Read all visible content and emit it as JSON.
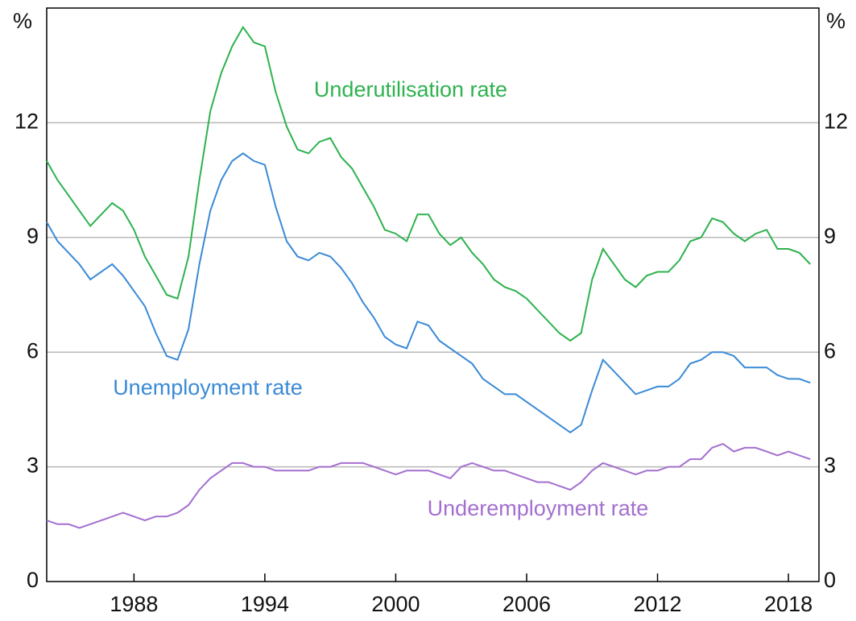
{
  "chart_data": {
    "type": "line",
    "y_unit": "%",
    "x": [
      1984,
      1984.5,
      1985,
      1985.5,
      1986,
      1986.5,
      1987,
      1987.5,
      1988,
      1988.5,
      1989,
      1989.5,
      1990,
      1990.5,
      1991,
      1991.5,
      1992,
      1992.5,
      1993,
      1993.5,
      1994,
      1994.5,
      1995,
      1995.5,
      1996,
      1996.5,
      1997,
      1997.5,
      1998,
      1998.5,
      1999,
      1999.5,
      2000,
      2000.5,
      2001,
      2001.5,
      2002,
      2002.5,
      2003,
      2003.5,
      2004,
      2004.5,
      2005,
      2005.5,
      2006,
      2006.5,
      2007,
      2007.5,
      2008,
      2008.5,
      2009,
      2009.5,
      2010,
      2010.5,
      2011,
      2011.5,
      2012,
      2012.5,
      2013,
      2013.5,
      2014,
      2014.5,
      2015,
      2015.5,
      2016,
      2016.5,
      2017,
      2017.5,
      2018,
      2018.5,
      2019
    ],
    "series": [
      {
        "name": "Underutilisation rate",
        "color": "#2eb24e",
        "values": [
          11.0,
          10.5,
          10.1,
          9.7,
          9.3,
          9.6,
          9.9,
          9.7,
          9.2,
          8.5,
          8.0,
          7.5,
          7.4,
          8.5,
          10.5,
          12.3,
          13.3,
          14.0,
          14.5,
          14.1,
          14.0,
          12.8,
          11.9,
          11.3,
          11.2,
          11.5,
          11.6,
          11.1,
          10.8,
          10.3,
          9.8,
          9.2,
          9.1,
          8.9,
          9.6,
          9.6,
          9.1,
          8.8,
          9.0,
          8.6,
          8.3,
          7.9,
          7.7,
          7.6,
          7.4,
          7.1,
          6.8,
          6.5,
          6.3,
          6.5,
          7.9,
          8.7,
          8.3,
          7.9,
          7.7,
          8.0,
          8.1,
          8.1,
          8.4,
          8.9,
          9.0,
          9.5,
          9.4,
          9.1,
          8.9,
          9.1,
          9.2,
          8.7,
          8.7,
          8.6,
          8.3
        ]
      },
      {
        "name": "Unemployment rate",
        "color": "#3a8ad6",
        "values": [
          9.4,
          8.9,
          8.6,
          8.3,
          7.9,
          8.1,
          8.3,
          8.0,
          7.6,
          7.2,
          6.5,
          5.9,
          5.8,
          6.6,
          8.3,
          9.7,
          10.5,
          11.0,
          11.2,
          11.0,
          10.9,
          9.8,
          8.9,
          8.5,
          8.4,
          8.6,
          8.5,
          8.2,
          7.8,
          7.3,
          6.9,
          6.4,
          6.2,
          6.1,
          6.8,
          6.7,
          6.3,
          6.1,
          5.9,
          5.7,
          5.3,
          5.1,
          4.9,
          4.9,
          4.7,
          4.5,
          4.3,
          4.1,
          3.9,
          4.1,
          5.0,
          5.8,
          5.5,
          5.2,
          4.9,
          5.0,
          5.1,
          5.1,
          5.3,
          5.7,
          5.8,
          6.0,
          6.0,
          5.9,
          5.6,
          5.6,
          5.6,
          5.4,
          5.3,
          5.3,
          5.2
        ]
      },
      {
        "name": "Underemployment rate",
        "color": "#a46fd0",
        "values": [
          1.6,
          1.5,
          1.5,
          1.4,
          1.5,
          1.6,
          1.7,
          1.8,
          1.7,
          1.6,
          1.7,
          1.7,
          1.8,
          2.0,
          2.4,
          2.7,
          2.9,
          3.1,
          3.1,
          3.0,
          3.0,
          2.9,
          2.9,
          2.9,
          2.9,
          3.0,
          3.0,
          3.1,
          3.1,
          3.1,
          3.0,
          2.9,
          2.8,
          2.9,
          2.9,
          2.9,
          2.8,
          2.7,
          3.0,
          3.1,
          3.0,
          2.9,
          2.9,
          2.8,
          2.7,
          2.6,
          2.6,
          2.5,
          2.4,
          2.6,
          2.9,
          3.1,
          3.0,
          2.9,
          2.8,
          2.9,
          2.9,
          3.0,
          3.0,
          3.2,
          3.2,
          3.5,
          3.6,
          3.4,
          3.5,
          3.5,
          3.4,
          3.3,
          3.4,
          3.3,
          3.2
        ]
      }
    ],
    "xlim": [
      1984,
      2019.4
    ],
    "xticks": [
      1988,
      1994,
      2000,
      2006,
      2012,
      2018
    ],
    "ylim": [
      0,
      15
    ],
    "yticks": [
      0,
      3,
      6,
      9,
      12
    ],
    "grid": true
  }
}
